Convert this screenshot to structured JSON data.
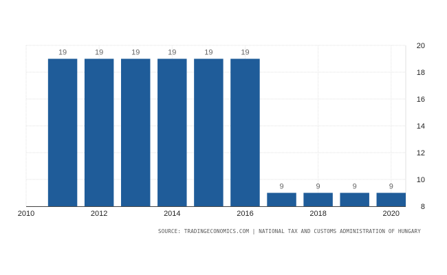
{
  "chart_data": {
    "type": "bar",
    "x": [
      2011,
      2012,
      2013,
      2014,
      2015,
      2016,
      2017,
      2018,
      2019,
      2020
    ],
    "values": [
      19,
      19,
      19,
      19,
      19,
      19,
      9,
      9,
      9,
      9
    ],
    "data_labels": [
      "19",
      "19",
      "19",
      "19",
      "19",
      "19",
      "9",
      "9",
      "9",
      "9"
    ],
    "x_ticks": [
      "2010",
      "2012",
      "2014",
      "2016",
      "2018",
      "2020"
    ],
    "y_ticks": [
      "8",
      "10",
      "12",
      "14",
      "16",
      "18",
      "20"
    ],
    "xlim": [
      2010,
      2020.4
    ],
    "ylim": [
      8,
      20
    ],
    "y_axis_side": "right",
    "grid": "both",
    "legend": "none",
    "bar_color": "#1f5c99",
    "title": "",
    "xlabel": "",
    "ylabel": ""
  },
  "source": "SOURCE: TRADINGECONOMICS.COM | NATIONAL TAX AND CUSTOMS ADMINISTRATION OF HUNGARY"
}
